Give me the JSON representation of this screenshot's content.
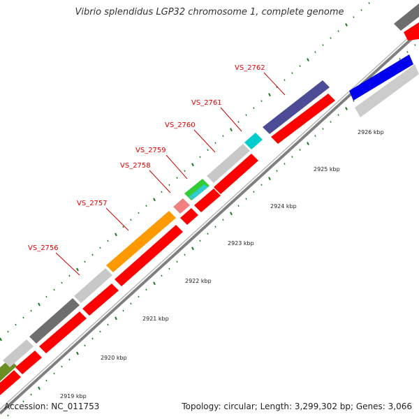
{
  "title": "Vibrio splendidus LGP32 chromosome 1, complete genome",
  "footer": {
    "accession": "Accession: NC_011753",
    "summary": "Topology: circular; Length: 3,299,302 bp; Genes: 3,066"
  },
  "colors": {
    "backbone": "#8c8c8c",
    "forward_cds": "#ff0000",
    "tick": "#1b7a1b",
    "gene_label": "#e00000",
    "text": "#222222"
  },
  "scale_labels": [
    "2919 kbp",
    "2920 kbp",
    "2921 kbp",
    "2922 kbp",
    "2923 kbp",
    "2924 kbp",
    "2925 kbp",
    "2926 kbp"
  ],
  "gene_labels": [
    {
      "name": "VS_2756",
      "color": "#ff0000"
    },
    {
      "name": "VS_2757",
      "color": "#ff0000"
    },
    {
      "name": "VS_2758",
      "color": "#ff0000"
    },
    {
      "name": "VS_2759",
      "color": "#ff0000"
    },
    {
      "name": "VS_2760",
      "color": "#ff0000"
    },
    {
      "name": "VS_2761",
      "color": "#ff0000"
    },
    {
      "name": "VS_2762",
      "color": "#ff0000"
    }
  ],
  "outer_features": [
    {
      "id": "olive",
      "color": "#6b8e23"
    },
    {
      "id": "light-gray-1",
      "color": "#c8c8c8"
    },
    {
      "id": "dark-gray-1",
      "color": "#6e6e6e"
    },
    {
      "id": "light-gray-2",
      "color": "#c8c8c8"
    },
    {
      "id": "orange",
      "color": "#ff9900"
    },
    {
      "id": "pink",
      "color": "#f08080"
    },
    {
      "id": "green",
      "color": "#33cc33"
    },
    {
      "id": "cyan-small",
      "color": "#33cccc"
    },
    {
      "id": "light-gray-3",
      "color": "#c8c8c8"
    },
    {
      "id": "cyan",
      "color": "#00cccc"
    },
    {
      "id": "navy",
      "color": "#4b4b96"
    },
    {
      "id": "dark-gray-far",
      "color": "#6e6e6e"
    }
  ],
  "inner_features": [
    {
      "id": "red-1"
    },
    {
      "id": "red-2"
    },
    {
      "id": "red-3"
    },
    {
      "id": "red-4"
    },
    {
      "id": "red-5"
    },
    {
      "id": "red-6"
    },
    {
      "id": "red-7"
    },
    {
      "id": "red-8"
    },
    {
      "id": "red-9"
    }
  ],
  "far_features": [
    {
      "id": "blue",
      "color": "#0000ee"
    },
    {
      "id": "light-gray-far",
      "color": "#cccccc"
    },
    {
      "id": "red-far",
      "color": "#ff0000"
    }
  ]
}
